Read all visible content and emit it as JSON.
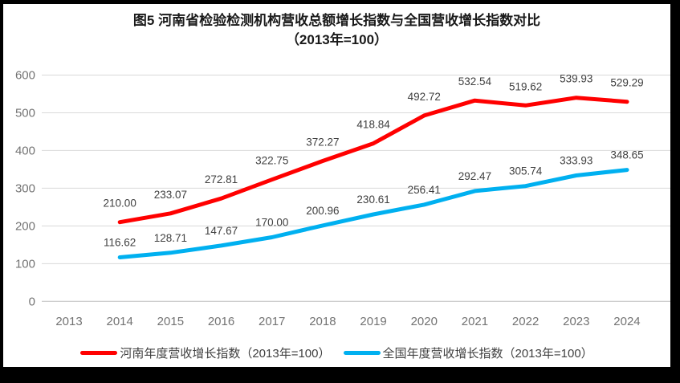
{
  "title": {
    "line1": "图5  河南省检验检测机构营收总额增长指数与全国营收增长指数对比",
    "line2": "（2013年=100）"
  },
  "chart_data": {
    "type": "line",
    "title": "图5 河南省检验检测机构营收总额增长指数与全国营收增长指数对比（2013年=100）",
    "categories": [
      "2013",
      "2014",
      "2015",
      "2016",
      "2017",
      "2018",
      "2019",
      "2020",
      "2021",
      "2022",
      "2023",
      "2024"
    ],
    "series": [
      {
        "name": "河南年度营收增长指数（2013年=100）",
        "color": "#FF0000",
        "values": [
          null,
          210.0,
          233.07,
          272.81,
          322.75,
          372.27,
          418.84,
          492.72,
          532.54,
          519.62,
          539.93,
          529.29
        ]
      },
      {
        "name": "全国年度营收增长指数（2013年=100）",
        "color": "#00B0F0",
        "values": [
          null,
          116.62,
          128.71,
          147.67,
          170.0,
          200.96,
          230.61,
          256.41,
          292.47,
          305.74,
          333.93,
          348.65
        ]
      }
    ],
    "xlabel": "",
    "ylabel": "",
    "ylim": [
      0,
      600
    ],
    "yticks": [
      0,
      100,
      200,
      300,
      400,
      500,
      600
    ],
    "grid": true,
    "legend_position": "bottom",
    "data_labels": true,
    "label_decimals": 2
  },
  "colors": {
    "henan_line": "#FF0000",
    "national_line": "#00B0F0",
    "gridline": "#D9D9D9",
    "zero_axis": "#BFBFBF",
    "axis_text": "#737373",
    "data_label": "#404040",
    "legend_text": "#404040",
    "frame": "#000000",
    "title_text": "#1a1a1a"
  }
}
